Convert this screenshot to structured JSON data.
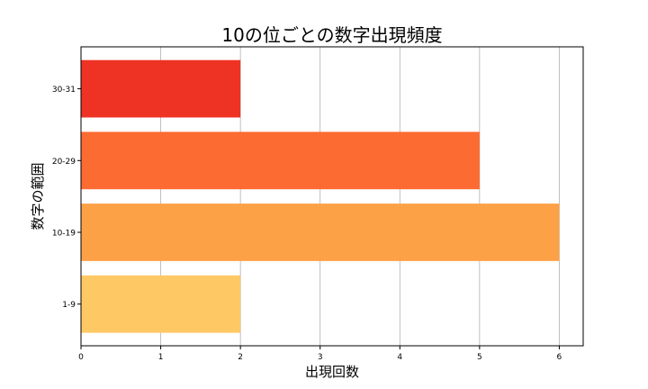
{
  "chart_data": {
    "type": "bar",
    "orientation": "horizontal",
    "title": "10の位ごとの数字出現頻度",
    "xlabel": "出現回数",
    "ylabel": "数字の範囲",
    "categories": [
      "1-9",
      "10-19",
      "20-29",
      "30-31"
    ],
    "values": [
      2,
      6,
      5,
      2
    ],
    "colors": [
      "#fec965",
      "#fda147",
      "#fc6b32",
      "#ee3224"
    ],
    "xlim": [
      0,
      6.3
    ],
    "xticks": [
      0,
      1,
      2,
      3,
      4,
      5,
      6
    ],
    "grid": "x"
  }
}
